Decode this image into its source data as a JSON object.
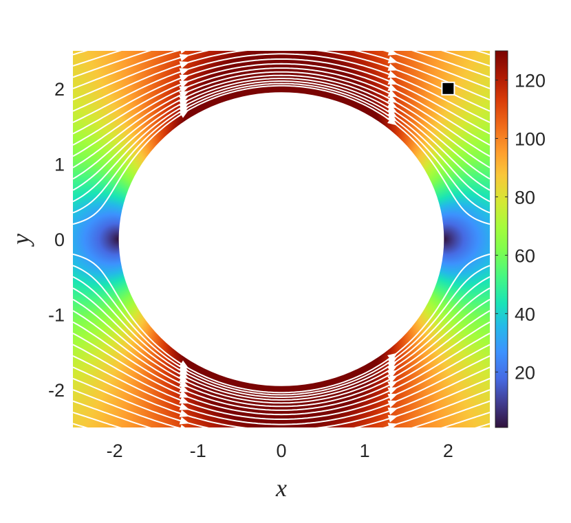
{
  "chart_data": {
    "type": "heatmap",
    "title": "",
    "xlabel": "x",
    "ylabel": "y",
    "xlim": [
      -2.5,
      2.5
    ],
    "ylim": [
      -2.5,
      2.5
    ],
    "x_ticks": [
      -2,
      -1,
      0,
      1,
      2
    ],
    "y_ticks": [
      -2,
      -1,
      0,
      1,
      2
    ],
    "x_tick_labels": [
      "-2",
      "-1",
      "0",
      "1",
      "2"
    ],
    "y_tick_labels": [
      "-2",
      "-1",
      "0",
      "1",
      "2"
    ],
    "colormap": "turbo",
    "colorbar": {
      "range": [
        1,
        130
      ],
      "ticks": [
        20,
        40,
        60,
        80,
        100,
        120
      ],
      "tick_labels": [
        "20",
        "40",
        "60",
        "80",
        "100",
        "120"
      ]
    },
    "obstacle": {
      "shape": "ellipse",
      "center": [
        0,
        0
      ],
      "semi_axis_x": 1.95,
      "semi_axis_y": 1.95,
      "fill": "#ffffff"
    },
    "field_description_values": {
      "min_near": [
        [
          -2,
          0
        ],
        [
          2,
          0
        ]
      ],
      "max_near": [
        [
          0,
          2
        ],
        [
          0,
          -2
        ]
      ]
    },
    "streamlines": {
      "color": "#ffffff",
      "direction": "left-to-right",
      "start_y": [
        2.45,
        2.3,
        2.15,
        2.0,
        1.85,
        1.7,
        1.55,
        1.4,
        1.25,
        1.1,
        0.95,
        0.8,
        0.65,
        0.5,
        0.35,
        0.2,
        0.08,
        -0.08,
        -0.2,
        -0.35,
        -0.5,
        -0.65,
        -0.8,
        -0.95,
        -1.1,
        -1.25,
        -1.4,
        -1.55,
        -1.7,
        -1.85,
        -2.0,
        -2.15,
        -2.3,
        -2.45
      ]
    },
    "marker": {
      "x": 2.0,
      "y": 2.0,
      "shape": "square",
      "color": "#000000",
      "edge_color": "#ffffff"
    },
    "grid": false,
    "legend": "none"
  }
}
